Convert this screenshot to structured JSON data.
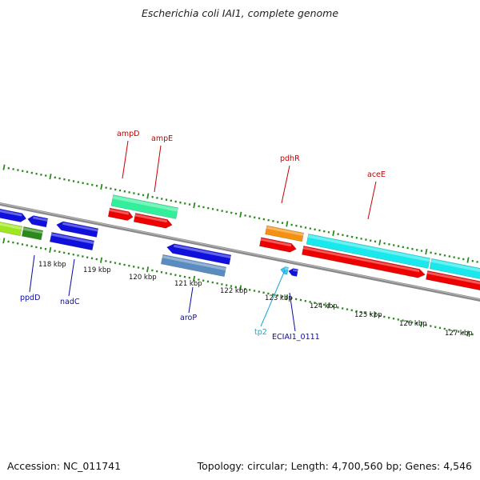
{
  "title": "Escherichia coli IAI1, complete genome",
  "footer": {
    "accession": "Accession: NC_011741",
    "topology": "Topology: circular; Length: 4,700,560 bp; Genes: 4,546"
  },
  "colors": {
    "backbone": "#8a8a8a",
    "tick": "#2d8a1f",
    "gene_label_red": "#c80000",
    "gene_label_blue": "#0a0aa8",
    "gene_label_cyan": "#12a6d6",
    "red": "#ee0000",
    "blue": "#1010dd",
    "cyan": "#19e9ec",
    "mint": "#33ee9a",
    "orange": "#f59010",
    "steel": "#5a8cc0",
    "lime": "#9ee61e",
    "green": "#2a8a1a"
  },
  "diagram": {
    "kbp_ticks": [
      {
        "kbp": 118,
        "label": "118 kbp"
      },
      {
        "kbp": 119,
        "label": "119 kbp"
      },
      {
        "kbp": 120,
        "label": "120 kbp"
      },
      {
        "kbp": 121,
        "label": "121 kbp"
      },
      {
        "kbp": 122,
        "label": "122 kbp"
      },
      {
        "kbp": 123,
        "label": "123 kbp"
      },
      {
        "kbp": 124,
        "label": "124 kbp"
      },
      {
        "kbp": 125,
        "label": "125 kbp"
      },
      {
        "kbp": 126,
        "label": "126 kbp"
      },
      {
        "kbp": 127,
        "label": "127 kbp"
      }
    ],
    "gene_labels": [
      {
        "name": "ampD",
        "color": "red"
      },
      {
        "name": "ampE",
        "color": "red"
      },
      {
        "name": "pdhR",
        "color": "red"
      },
      {
        "name": "aceE",
        "color": "red"
      },
      {
        "name": "ppdD",
        "color": "blue"
      },
      {
        "name": "nadC",
        "color": "blue"
      },
      {
        "name": "aroP",
        "color": "blue"
      },
      {
        "name": "tp2",
        "color": "cyan"
      },
      {
        "name": "ECIAI1_0111",
        "color": "blue"
      }
    ]
  }
}
